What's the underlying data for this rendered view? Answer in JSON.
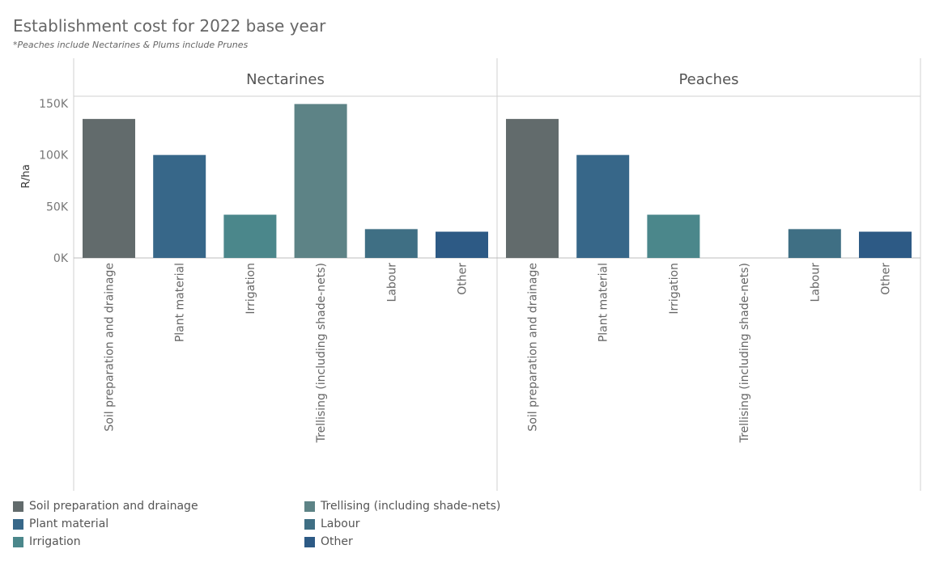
{
  "header": {
    "title": "Establishment cost for 2022 base year",
    "subtitle": "*Peaches include Nectarines & Plums include Prunes"
  },
  "chart_data": {
    "type": "bar",
    "ylabel": "R/ha",
    "ylim": [
      0,
      160000
    ],
    "y_ticks": [
      0,
      50000,
      100000,
      150000
    ],
    "y_tick_labels": [
      "0K",
      "50K",
      "100K",
      "150K"
    ],
    "grid": false,
    "legend_position": "bottom-left",
    "categories": [
      "Soil preparation and drainage",
      "Plant material",
      "Irrigation",
      "Trellising (including shade-nets)",
      "Labour",
      "Other"
    ],
    "colors": [
      "#626b6c",
      "#376789",
      "#4b878b",
      "#5d8386",
      "#3f6f84",
      "#2d5a85"
    ],
    "panels": [
      {
        "name": "Nectarines",
        "values": [
          135000,
          100000,
          42000,
          149500,
          28000,
          25500
        ]
      },
      {
        "name": "Peaches",
        "values": [
          135000,
          100000,
          42000,
          0,
          28000,
          25500
        ]
      }
    ]
  }
}
